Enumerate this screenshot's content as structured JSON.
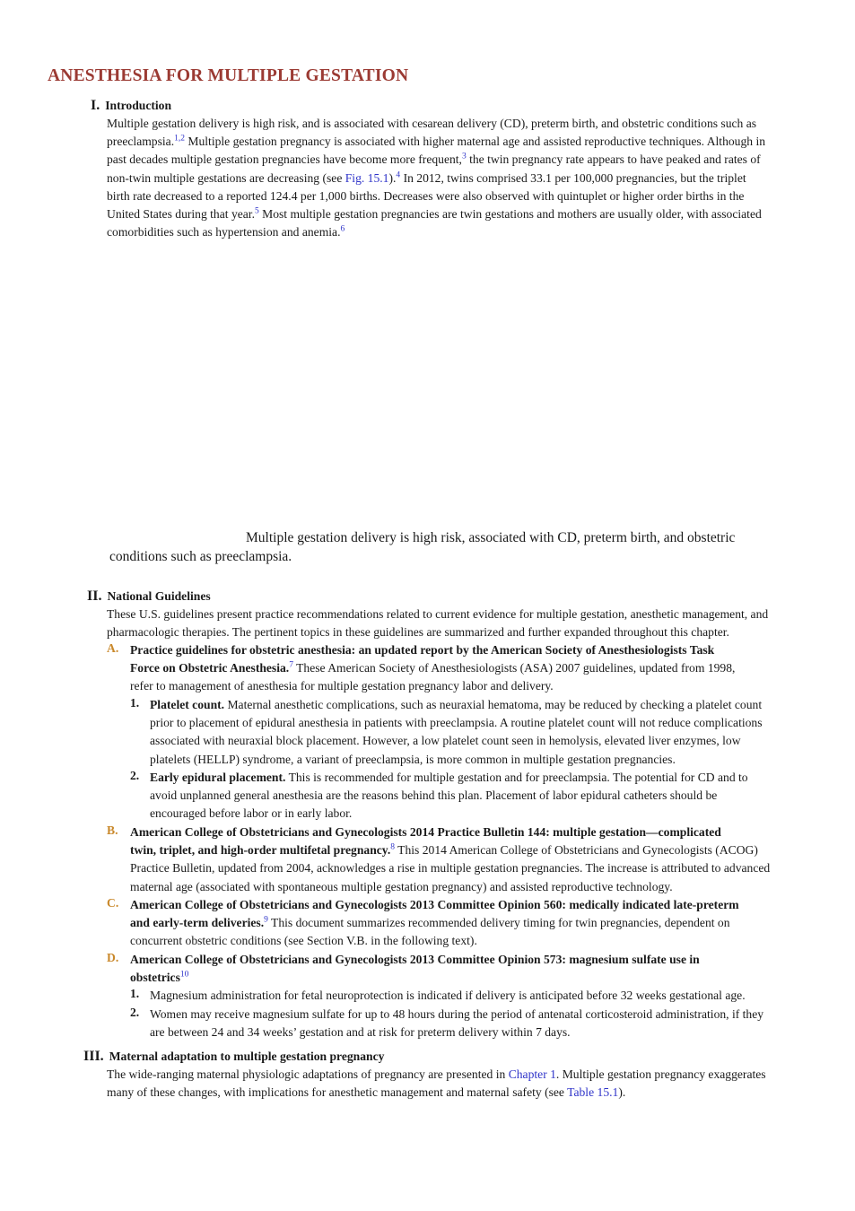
{
  "title": "ANESTHESIA FOR MULTIPLE GESTATION",
  "sections": {
    "s1": {
      "num": "I.",
      "heading": "Introduction",
      "lines": [
        [
          "Multiple gestation delivery is high risk, and is associated with cesarean delivery (CD), preterm birth, and obstetric conditions such as"
        ],
        [
          "preeclampsia.",
          "1,2",
          " Multiple gestation pregnancy is associated with higher maternal age and assisted reproductive techniques. Although in"
        ],
        [
          "past decades multiple gestation pregnancies have become more frequent,",
          "3",
          " the twin pregnancy rate appears to have peaked and rates of"
        ],
        [
          "non-twin multiple gestations are decreasing (see ",
          "Fig. 15.1",
          ").",
          "4",
          " In 2012, twins comprised 33.1 per 100,000 pregnancies, but the triplet"
        ],
        [
          "birth rate decreased to a reported 124.4 per 1,000 births. Decreases were also observed with quintuplet or higher order births in the"
        ],
        [
          "United States during that year.",
          "5",
          " Most multiple gestation pregnancies are twin gestations and mothers are usually older, with associated"
        ],
        [
          "comorbidities such as hypertension and anemia.",
          "6"
        ]
      ]
    },
    "caption": {
      "line1": "Multiple gestation delivery is high risk, associated with CD, preterm birth, and obstetric",
      "line2": "conditions such as preeclampsia."
    },
    "s2": {
      "num": "II.",
      "heading": "National Guidelines",
      "intro": [
        "These U.S. guidelines present practice recommendations related to current evidence for multiple gestation, anesthetic management, and",
        "pharmacologic therapies. The pertinent topics in these guidelines are summarized and further expanded throughout this chapter."
      ],
      "A": {
        "letter": "A.",
        "bold1": "Practice guidelines for obstetric anesthesia: an updated report by the American Society of Anesthesiologists Task",
        "bold2": "Force on Obstetric Anesthesia.",
        "ref": "7",
        "rest2": " These American Society of Anesthesiologists (ASA) 2007 guidelines, updated from 1998,",
        "line3": "refer to management of anesthesia for multiple gestation pregnancy labor and delivery.",
        "items": [
          {
            "num": "1.",
            "bold": "Platelet count.",
            "lines": [
              " Maternal anesthetic complications, such as neuraxial hematoma, may be reduced by checking a platelet count",
              "prior to placement of epidural anesthesia in patients with preeclampsia. A routine platelet count will not reduce complications",
              "associated with neuraxial block placement. However, a low platelet count seen in hemolysis, elevated liver enzymes, low",
              "platelets (HELLP) syndrome, a variant of preeclampsia, is more common in multiple gestation pregnancies."
            ]
          },
          {
            "num": "2.",
            "bold": "Early epidural placement.",
            "lines": [
              " This is recommended for multiple gestation and for preeclampsia. The potential for CD and to",
              "avoid unplanned general anesthesia are the reasons behind this plan. Placement of labor epidural catheters should be",
              "encouraged before labor or in early labor."
            ]
          }
        ]
      },
      "B": {
        "letter": "B.",
        "bold1": "American College of Obstetricians and Gynecologists 2014 Practice Bulletin 144: multiple gestation—complicated",
        "bold2": "twin, triplet, and high-order multifetal pregnancy.",
        "ref": "8",
        "rest2": " This 2014 American College of Obstetricians and Gynecologists (ACOG)",
        "line3": "Practice Bulletin, updated from 2004, acknowledges a rise in multiple gestation pregnancies. The increase is attributed to advanced",
        "line4": "maternal age (associated with spontaneous multiple gestation pregnancy) and assisted reproductive technology."
      },
      "C": {
        "letter": "C.",
        "bold1": "American College of Obstetricians and Gynecologists 2013 Committee Opinion 560: medically indicated late-preterm",
        "bold2": "and early-term deliveries.",
        "ref": "9",
        "rest2": " This document summarizes recommended delivery timing for twin pregnancies, dependent on",
        "line3": "concurrent obstetric conditions (see Section V.B. in the following text)."
      },
      "D": {
        "letter": "D.",
        "bold1": "American College of Obstetricians and Gynecologists 2013 Committee Opinion 573: magnesium sulfate use in",
        "bold2": "obstetrics",
        "ref": "10",
        "items": [
          {
            "num": "1.",
            "lines": [
              "Magnesium administration for fetal neuroprotection is indicated if delivery is anticipated before 32 weeks gestational age."
            ]
          },
          {
            "num": "2.",
            "lines": [
              "Women may receive magnesium sulfate for up to 48 hours during the period of antenatal corticosteroid administration, if they",
              "are between 24 and 34 weeks’ gestation and at risk for preterm delivery within 7 days."
            ]
          }
        ]
      }
    },
    "s3": {
      "num": "III.",
      "heading": "Maternal adaptation to multiple gestation pregnancy",
      "line1a": "The wide-ranging maternal physiologic adaptations of pregnancy are presented in ",
      "line1link": "Chapter 1",
      "line1b": ". Multiple gestation pregnancy exaggerates",
      "line2a": "many of these changes, with implications for anesthetic management and maternal safety (see ",
      "line2link": "Table 15.1",
      "line2b": ")."
    }
  },
  "colors": {
    "title": "#9b3a33",
    "link": "#2e33c9",
    "subletter": "#c9882a"
  }
}
